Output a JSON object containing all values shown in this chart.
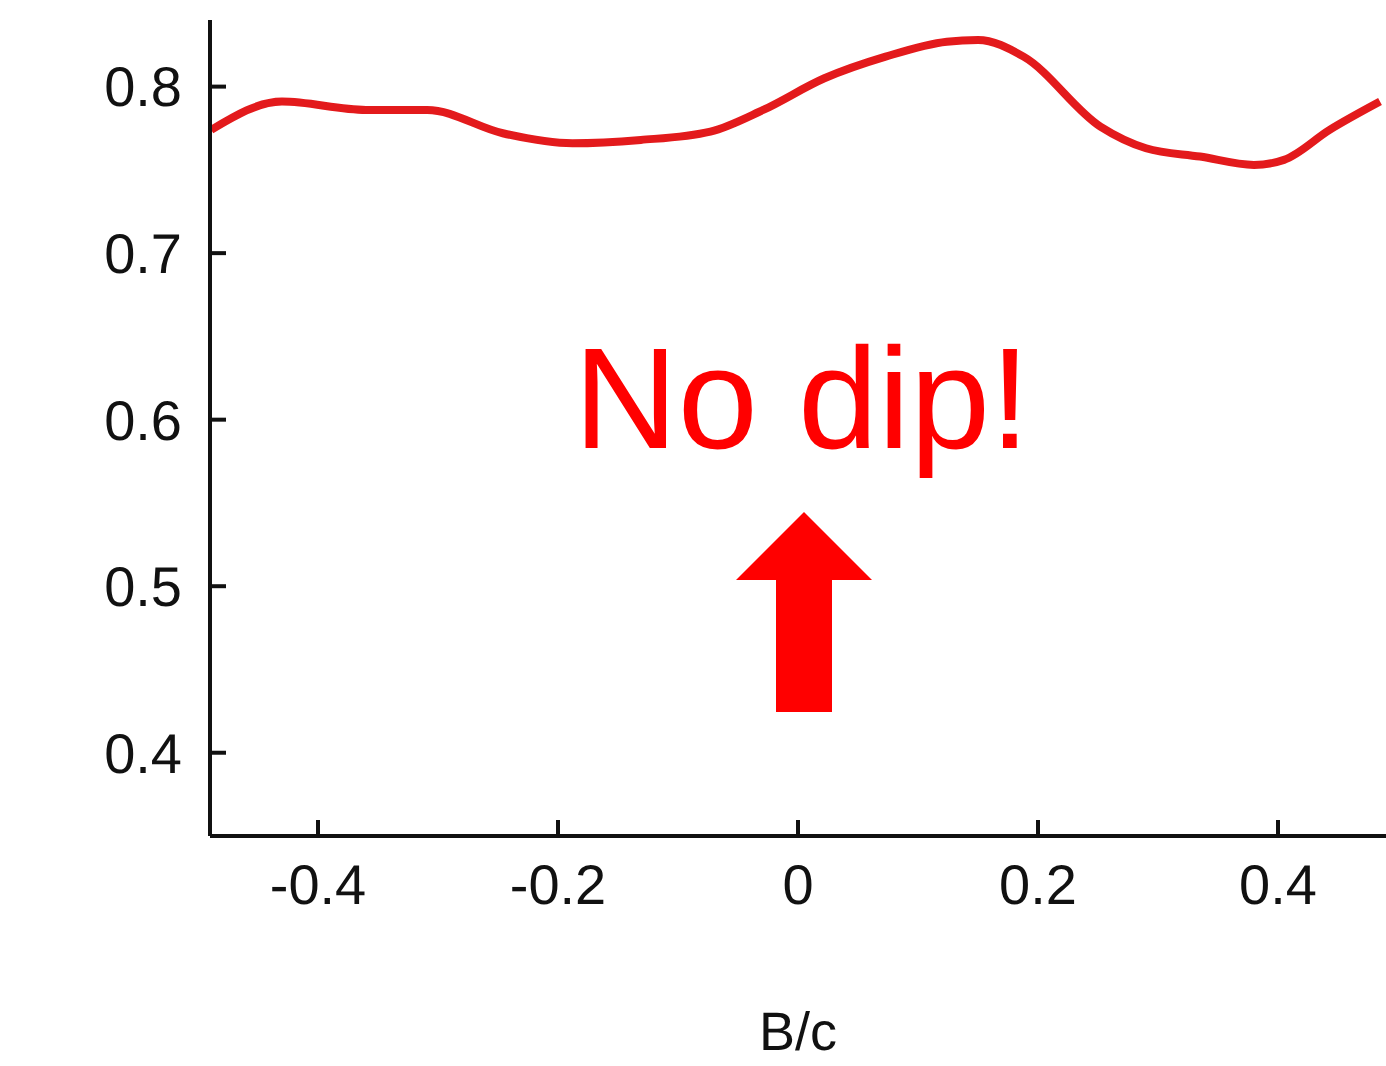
{
  "chart_data": {
    "type": "line",
    "xlabel": "B/c",
    "x": [
      -0.489,
      -0.43,
      -0.36,
      -0.309,
      -0.246,
      -0.188,
      -0.131,
      -0.073,
      -0.029,
      0.022,
      0.073,
      0.124,
      0.15,
      0.188,
      0.252,
      0.29,
      0.335,
      0.38,
      0.405,
      0.443,
      0.485
    ],
    "series": [
      {
        "color": "#e31a1c",
        "values": [
          0.774,
          0.791,
          0.786,
          0.786,
          0.772,
          0.766,
          0.768,
          0.773,
          0.786,
          0.805,
          0.818,
          0.827,
          0.828,
          0.818,
          0.776,
          0.763,
          0.758,
          0.753,
          0.756,
          0.774,
          0.791
        ]
      }
    ],
    "xlim": [
      -0.49,
      0.49
    ],
    "xticks": [
      -0.4,
      -0.2,
      0,
      0.2,
      0.4
    ],
    "ylim": [
      0.35,
      0.84
    ],
    "yticks": [
      0.4,
      0.5,
      0.6,
      0.7,
      0.8
    ],
    "annotations": [
      "No dip!"
    ],
    "grid": false,
    "legend": false,
    "marker": "none",
    "line_style": "solid"
  }
}
